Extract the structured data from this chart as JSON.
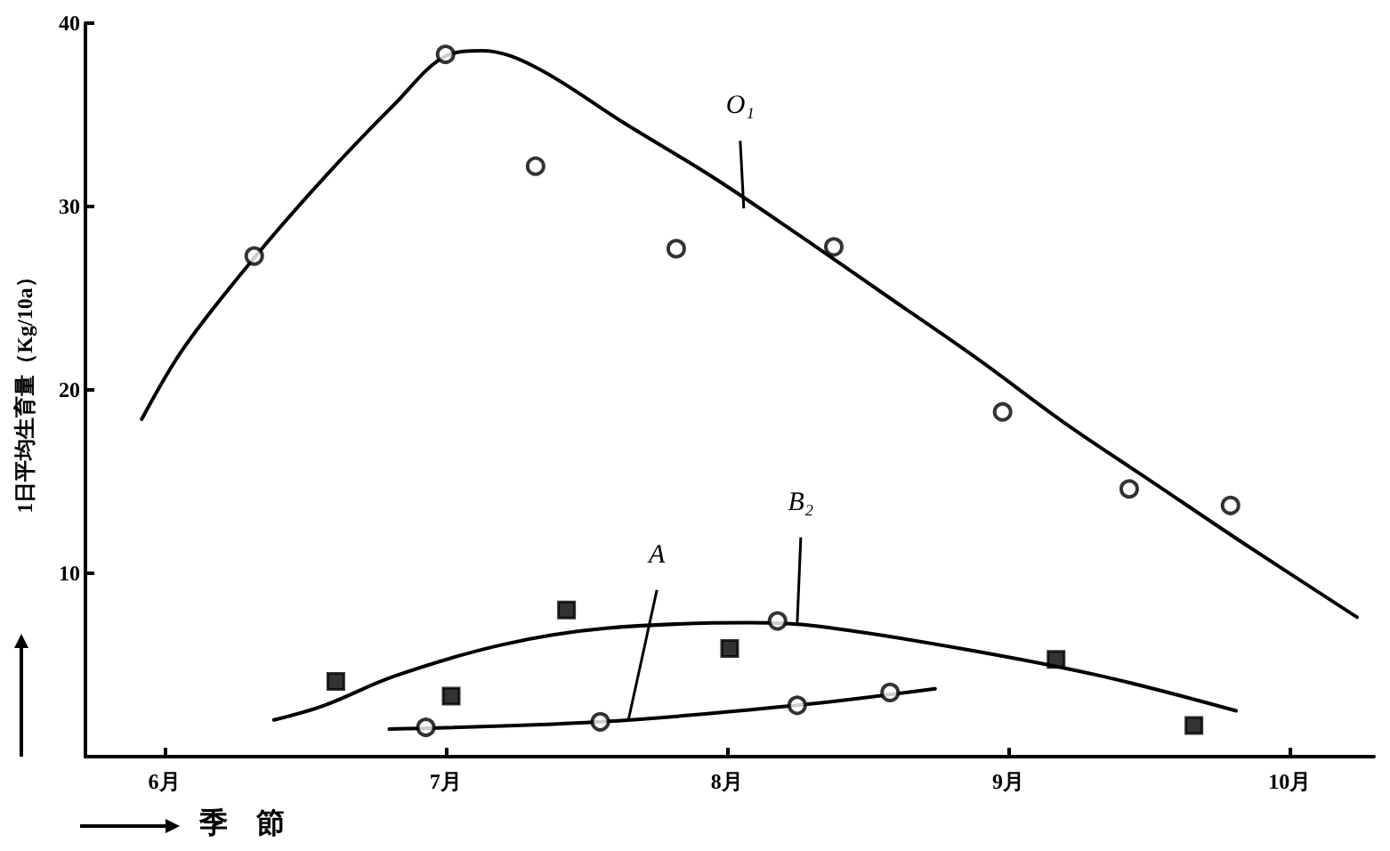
{
  "chart_data": {
    "type": "scatter",
    "xlabel": "季　節",
    "ylabel": "1日平均生育量（Kg/10a）",
    "xlim": [
      5.72,
      10.3
    ],
    "xticks": [
      {
        "value": 6,
        "label": "6月"
      },
      {
        "value": 7,
        "label": "7月"
      },
      {
        "value": 8,
        "label": "8月"
      },
      {
        "value": 9,
        "label": "9月"
      },
      {
        "value": 10,
        "label": "10月"
      }
    ],
    "ylim": [
      0,
      40
    ],
    "yticks": [
      10,
      20,
      30,
      40
    ],
    "grid": false,
    "series": [
      {
        "marker": "circle",
        "color": "#000000",
        "x": [
          6.32,
          7.0,
          7.32,
          7.82,
          8.38,
          8.98,
          9.43,
          9.79
        ],
        "values": [
          27.3,
          38.3,
          32.2,
          27.7,
          27.8,
          18.8,
          14.6,
          13.7
        ]
      },
      {
        "type": "line",
        "marker": "none",
        "color": "#000000",
        "x": [
          5.92,
          6.07,
          6.32,
          6.57,
          6.82,
          7.0,
          7.13,
          7.32,
          7.64,
          7.95,
          8.26,
          8.58,
          8.89,
          9.2,
          9.52,
          9.83,
          10.24
        ],
        "values": [
          18.4,
          22.3,
          27.2,
          31.6,
          35.6,
          38.2,
          38.5,
          37.6,
          34.5,
          31.6,
          28.4,
          25.0,
          21.7,
          18.2,
          14.9,
          11.7,
          7.6
        ]
      },
      {
        "marker": "square",
        "color": "#000000",
        "x": [
          6.61,
          7.02,
          7.43,
          8.01,
          9.17,
          9.66
        ],
        "values": [
          4.1,
          3.3,
          8.0,
          5.9,
          5.3,
          1.7
        ]
      },
      {
        "type": "line",
        "marker": "none",
        "color": "#000000",
        "x": [
          6.39,
          6.57,
          6.82,
          7.2,
          7.57,
          8.08,
          8.33,
          8.83,
          9.33,
          9.81
        ],
        "values": [
          2.0,
          2.8,
          4.4,
          6.1,
          7.0,
          7.3,
          7.1,
          5.9,
          4.4,
          2.5
        ]
      },
      {
        "marker": "circle",
        "color": "#000000",
        "x": [
          6.93,
          7.55,
          8.18,
          8.25,
          8.58
        ],
        "values": [
          1.6,
          1.9,
          7.4,
          2.8,
          3.5
        ]
      },
      {
        "type": "line",
        "marker": "none",
        "color": "#000000",
        "x": [
          6.8,
          7.55,
          8.25,
          8.74
        ],
        "values": [
          1.5,
          1.9,
          2.8,
          3.7
        ]
      }
    ],
    "annotations": [
      {
        "text": "O₁",
        "x": 8.06,
        "y": 29.9
      },
      {
        "text": "B₂",
        "x": 8.25,
        "y": 7.3
      },
      {
        "text": "A",
        "x": 7.65,
        "y": 2.0
      }
    ]
  }
}
